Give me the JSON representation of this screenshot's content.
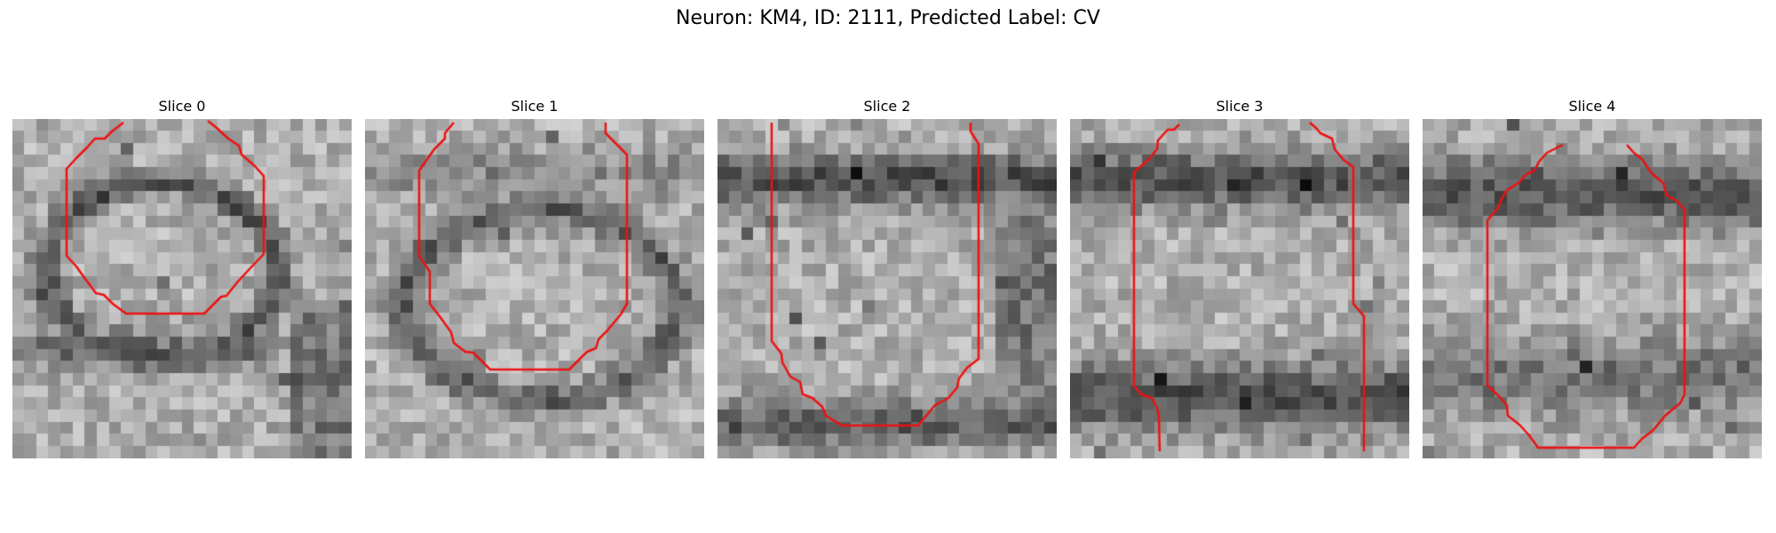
{
  "figure": {
    "title": "Neuron: KM4, ID: 2111, Predicted Label: CV"
  },
  "panels": [
    {
      "title": "Slice 0",
      "image": {
        "description": "",
        "dark_membrane": "ring"
      }
    },
    {
      "title": "Slice 1",
      "image": {
        "description": "",
        "dark_membrane": "ring"
      }
    },
    {
      "title": "Slice 2",
      "image": {
        "description": "",
        "dark_membrane": "bands"
      }
    },
    {
      "title": "Slice 3",
      "image": {
        "description": "",
        "dark_membrane": "bands"
      }
    },
    {
      "title": "Slice 4",
      "image": {
        "description": "",
        "dark_membrane": "bands"
      }
    }
  ],
  "colors": {
    "contour": "#ee1111",
    "background": "#ffffff"
  }
}
